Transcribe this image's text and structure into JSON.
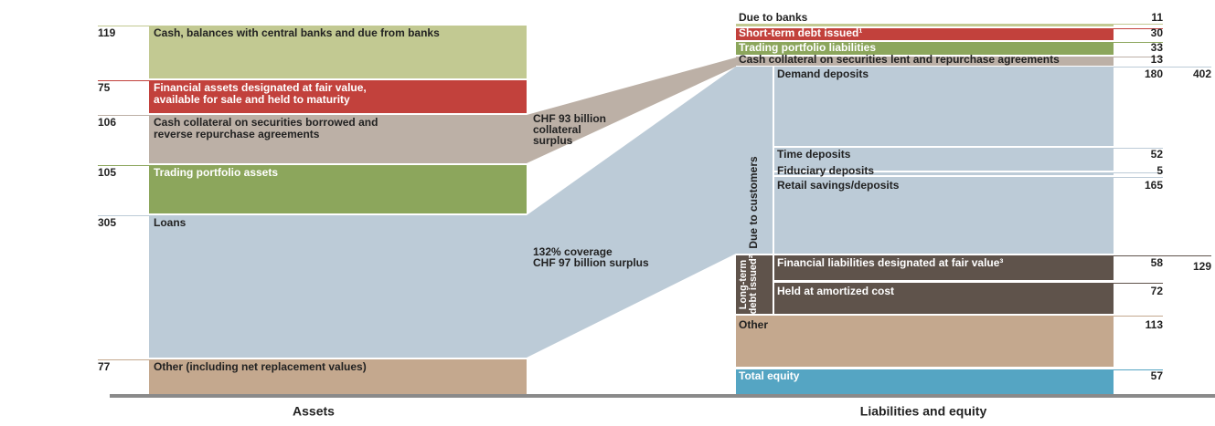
{
  "assets": {
    "title": "Assets",
    "items": [
      {
        "value": 119,
        "lines": [
          "Cash, balances with central banks and due from banks"
        ]
      },
      {
        "value": 75,
        "lines": [
          "Financial assets designated at fair value,",
          "available for sale and held to maturity"
        ]
      },
      {
        "value": 106,
        "lines": [
          "Cash collateral on securities borrowed and",
          "reverse repurchase agreements"
        ]
      },
      {
        "value": 105,
        "lines": [
          "Trading portfolio assets"
        ]
      },
      {
        "value": 305,
        "lines": [
          "Loans"
        ]
      },
      {
        "value": 77,
        "lines": [
          "Other (including net replacement values)"
        ]
      }
    ]
  },
  "annotations": [
    {
      "lines": [
        "CHF 93 billion",
        "collateral",
        "surplus"
      ]
    },
    {
      "lines": [
        "132% coverage",
        "CHF 97 billion surplus"
      ]
    }
  ],
  "liabilities": {
    "title": "Liabilities and equity",
    "top_items": [
      {
        "value": 11,
        "label": "Due to banks"
      },
      {
        "value": 30,
        "label": "Short-term debt issued¹"
      },
      {
        "value": 33,
        "label": "Trading portfolio liabilities"
      },
      {
        "value": 13,
        "label": "Cash collateral on securities lent and repurchase agreements"
      }
    ],
    "due_to_customers": {
      "label": "Due to customers",
      "total": 402,
      "items": [
        {
          "value": 180,
          "label": "Demand deposits"
        },
        {
          "value": 52,
          "label": "Time deposits"
        },
        {
          "value": 5,
          "label": "Fiduciary deposits"
        },
        {
          "value": 165,
          "label": "Retail savings/deposits"
        }
      ]
    },
    "long_term_debt": {
      "lines": [
        "Long-term",
        "debt issued²"
      ],
      "total": 129,
      "items": [
        {
          "value": 58,
          "label": "Financial liabilities designated at fair value³"
        },
        {
          "value": 72,
          "label": "Held at amortized cost"
        }
      ]
    },
    "bottom_items": [
      {
        "value": 113,
        "label": "Other"
      },
      {
        "value": 57,
        "label": "Total equity"
      }
    ]
  }
}
